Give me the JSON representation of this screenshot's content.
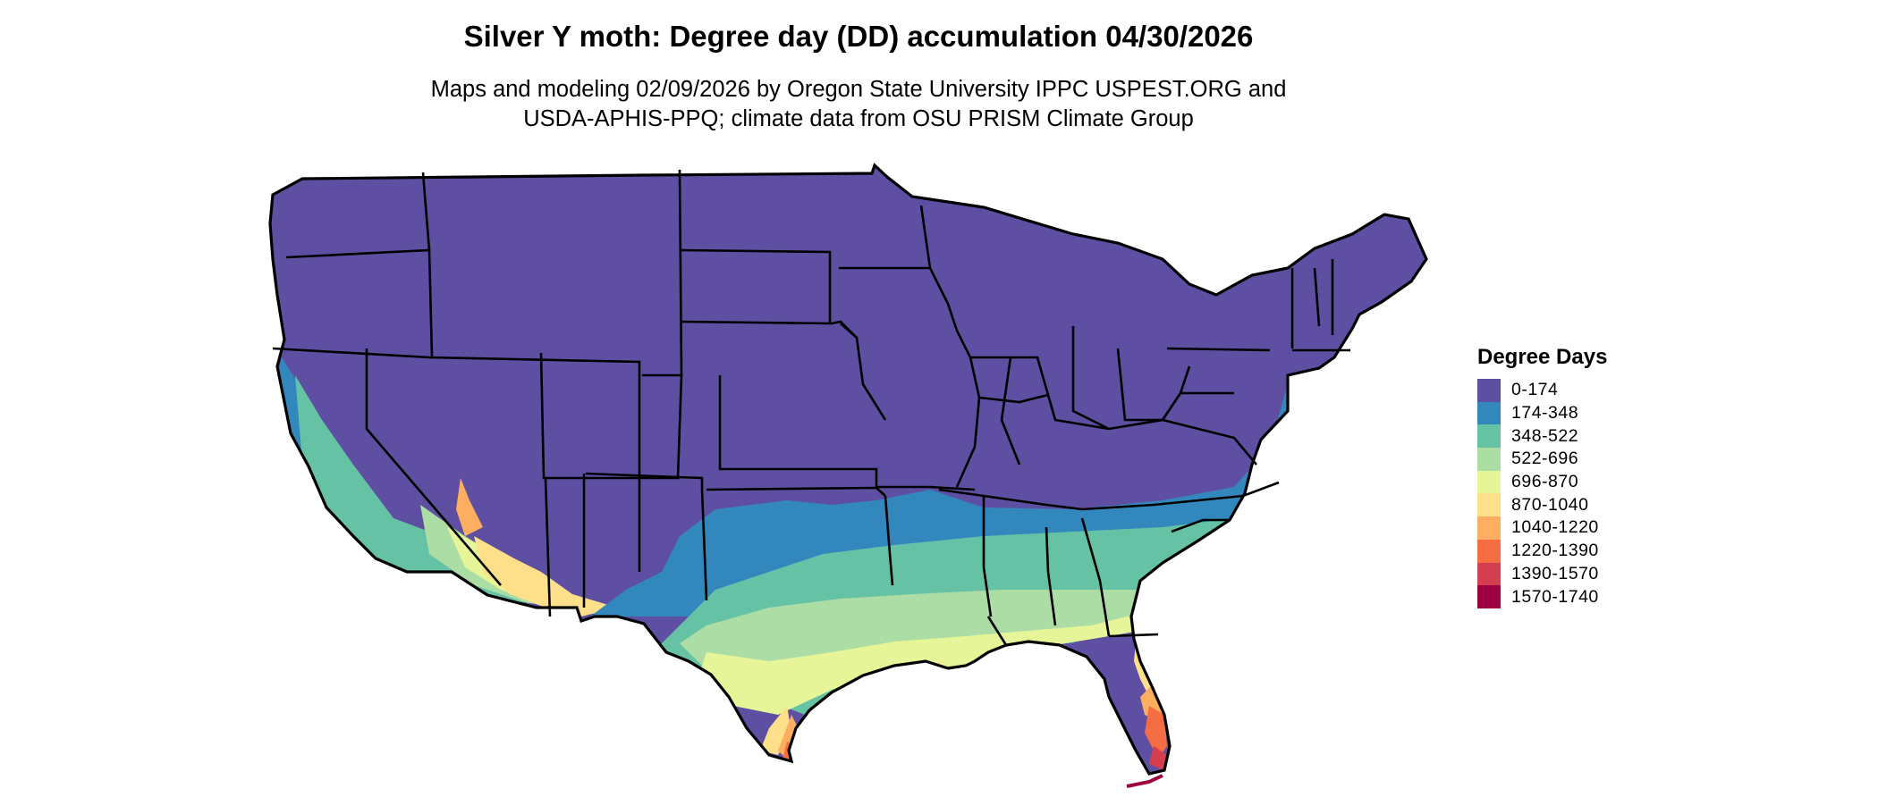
{
  "header": {
    "title": "Silver Y moth: Degree day (DD) accumulation 04/30/2026",
    "subtitle_line1": "Maps and modeling 02/09/2026 by Oregon State University IPPC USPEST.ORG and",
    "subtitle_line2": "USDA-APHIS-PPQ; climate data from OSU PRISM Climate Group"
  },
  "legend": {
    "title": "Degree Days",
    "items": [
      {
        "label": "0-174",
        "color": "#5e4fa2"
      },
      {
        "label": "174-348",
        "color": "#3288bd"
      },
      {
        "label": "348-522",
        "color": "#66c2a5"
      },
      {
        "label": "522-696",
        "color": "#abdda4"
      },
      {
        "label": "696-870",
        "color": "#e6f598"
      },
      {
        "label": "870-1040",
        "color": "#fee08b"
      },
      {
        "label": "1040-1220",
        "color": "#fdae61"
      },
      {
        "label": "1220-1390",
        "color": "#f46d43"
      },
      {
        "label": "1390-1570",
        "color": "#d53e4f"
      },
      {
        "label": "1570-1740",
        "color": "#9e0142"
      }
    ]
  },
  "map": {
    "region": "contiguous-united-states",
    "background": "#ffffff",
    "border_color": "#000000"
  }
}
